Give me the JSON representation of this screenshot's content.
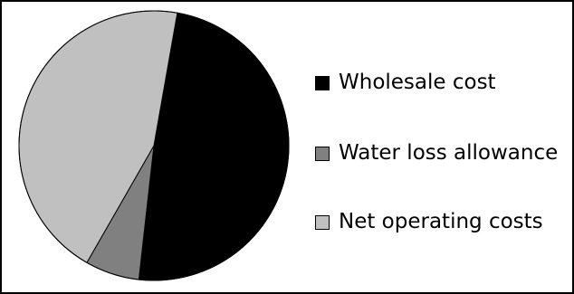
{
  "chart_data": {
    "type": "pie",
    "categories": [
      "Wholesale cost",
      "Water loss allowance",
      "Net operating costs"
    ],
    "values": [
      49,
      6.5,
      44.5
    ],
    "colors": [
      "#000000",
      "#808080",
      "#c0c0c0"
    ],
    "start_angle_deg": 10,
    "direction": "clockwise",
    "legend_position": "right",
    "title": "",
    "xlabel": "",
    "ylabel": ""
  }
}
